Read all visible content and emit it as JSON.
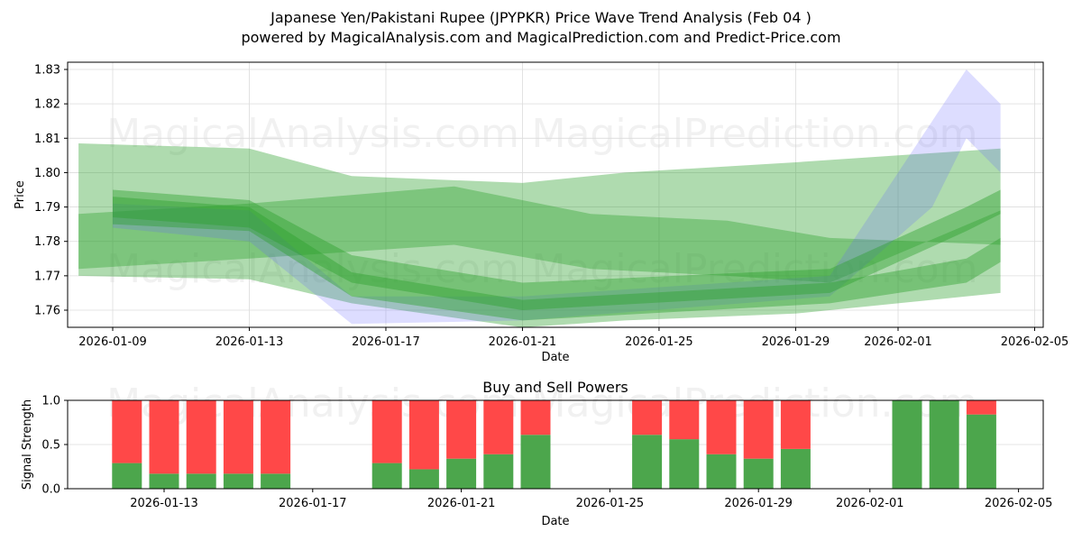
{
  "header": {
    "title": "Japanese Yen/Pakistani Rupee (JPYPKR) Price Wave Trend Analysis (Feb 04 )",
    "subtitle": "powered by MagicalAnalysis.com and MagicalPrediction.com and Predict-Price.com"
  },
  "watermarks": [
    "MagicalAnalysis.com",
    "MagicalPrediction.com"
  ],
  "colors": {
    "green_band": "#2ca02c",
    "blue_band": "#6666ff",
    "buy": "#4ca64c",
    "sell": "#ff4848"
  },
  "chart_data": [
    {
      "type": "area",
      "title": "Japanese Yen/Pakistani Rupee (JPYPKR) Price Wave Trend Analysis (Feb 04 )",
      "xlabel": "Date",
      "ylabel": "Price",
      "ylim": [
        1.755,
        1.832
      ],
      "yticks": [
        "1.76",
        "1.77",
        "1.78",
        "1.79",
        "1.80",
        "1.81",
        "1.82",
        "1.83"
      ],
      "xticks": [
        "2026-01-09",
        "2026-01-13",
        "2026-01-17",
        "2026-01-21",
        "2026-01-25",
        "2026-01-29",
        "2026-02-01",
        "2026-02-05"
      ],
      "grid": true,
      "bands": [
        {
          "color": "green",
          "x": [
            "2026-01-08",
            "2026-01-13",
            "2026-01-16",
            "2026-01-21",
            "2026-01-24",
            "2026-01-29",
            "2026-02-04"
          ],
          "upper": [
            1.8085,
            1.807,
            1.799,
            1.797,
            1.8,
            1.803,
            1.807
          ],
          "lower": [
            1.77,
            1.769,
            1.762,
            1.755,
            1.757,
            1.759,
            1.765
          ]
        },
        {
          "color": "green",
          "x": [
            "2026-01-08",
            "2026-01-13",
            "2026-01-19",
            "2026-01-23",
            "2026-01-27",
            "2026-01-30",
            "2026-02-04"
          ],
          "upper": [
            1.788,
            1.791,
            1.796,
            1.788,
            1.786,
            1.781,
            1.779
          ],
          "lower": [
            1.772,
            1.775,
            1.779,
            1.772,
            1.77,
            1.768,
            1.789
          ]
        },
        {
          "color": "blue",
          "x": [
            "2026-01-09",
            "2026-01-13",
            "2026-01-16",
            "2026-01-21",
            "2026-01-30",
            "2026-02-02",
            "2026-02-03",
            "2026-02-04"
          ],
          "upper": [
            1.791,
            1.789,
            1.764,
            1.764,
            1.77,
            1.815,
            1.83,
            1.82
          ],
          "lower": [
            1.784,
            1.78,
            1.756,
            1.757,
            1.764,
            1.79,
            1.81,
            1.8
          ]
        },
        {
          "color": "green",
          "x": [
            "2026-01-09",
            "2026-01-13",
            "2026-01-16",
            "2026-01-21",
            "2026-01-30",
            "2026-02-03",
            "2026-02-04"
          ],
          "upper": [
            1.793,
            1.79,
            1.771,
            1.763,
            1.768,
            1.775,
            1.781
          ],
          "lower": [
            1.785,
            1.783,
            1.764,
            1.757,
            1.762,
            1.768,
            1.774
          ]
        },
        {
          "color": "green",
          "x": [
            "2026-01-09",
            "2026-01-13",
            "2026-01-16",
            "2026-01-21",
            "2026-01-30",
            "2026-02-03",
            "2026-02-04"
          ],
          "upper": [
            1.795,
            1.792,
            1.776,
            1.768,
            1.772,
            1.79,
            1.795
          ],
          "lower": [
            1.787,
            1.784,
            1.768,
            1.76,
            1.765,
            1.783,
            1.788
          ]
        }
      ]
    },
    {
      "type": "bar",
      "stacked": true,
      "title": "Buy and Sell Powers",
      "xlabel": "Date",
      "ylabel": "Signal Strength",
      "ylim": [
        0,
        1
      ],
      "yticks": [
        "0.0",
        "0.5",
        "1.0"
      ],
      "xticks": [
        "2026-01-13",
        "2026-01-17",
        "2026-01-21",
        "2026-01-25",
        "2026-01-29",
        "2026-02-01",
        "2026-02-05"
      ],
      "categories": [
        "2026-01-12",
        "2026-01-13",
        "2026-01-14",
        "2026-01-15",
        "2026-01-16",
        "2026-01-19",
        "2026-01-20",
        "2026-01-21",
        "2026-01-22",
        "2026-01-23",
        "2026-01-26",
        "2026-01-27",
        "2026-01-28",
        "2026-01-29",
        "2026-01-30",
        "2026-02-02",
        "2026-02-03",
        "2026-02-04"
      ],
      "series": [
        {
          "name": "Buy",
          "color": "#4ca64c",
          "values": [
            0.29,
            0.17,
            0.17,
            0.17,
            0.17,
            0.29,
            0.22,
            0.34,
            0.39,
            0.61,
            0.61,
            0.56,
            0.39,
            0.34,
            0.45,
            1.0,
            1.0,
            0.84
          ]
        },
        {
          "name": "Sell",
          "color": "#ff4848",
          "values": [
            0.71,
            0.83,
            0.83,
            0.83,
            0.83,
            0.71,
            0.78,
            0.66,
            0.61,
            0.39,
            0.39,
            0.44,
            0.61,
            0.66,
            0.55,
            0.0,
            0.0,
            0.16
          ]
        }
      ]
    }
  ]
}
